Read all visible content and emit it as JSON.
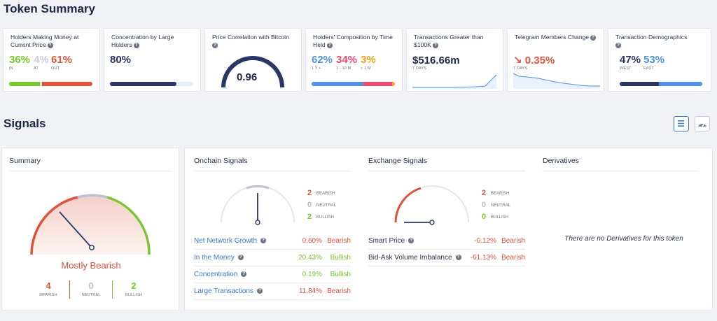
{
  "token_summary": {
    "title": "Token Summary",
    "cards": {
      "holders_money": {
        "title": "Holders Making Money at Current Price",
        "in_pct": "36%",
        "at_pct": "4%",
        "out_pct": "61%",
        "in_label": "IN",
        "at_label": "AT",
        "out_label": "OUT"
      },
      "concentration": {
        "title": "Concentration by Large Holders",
        "value": "80%",
        "fill": 0.8
      },
      "price_correlation": {
        "title": "Price Correlation with Bitcoin",
        "value": "0.96"
      },
      "composition": {
        "title": "Holders' Composition by Time Held",
        "v1": "62%",
        "v2": "34%",
        "v3": "3%",
        "l1": "1 Y +",
        "l2": "1 - 12 M",
        "l3": "< 1 M"
      },
      "transactions": {
        "title": "Transactions Greater than $100K",
        "value": "$516.66m",
        "period": "7 DAYS"
      },
      "telegram": {
        "title": "Telegram Members Change",
        "value": "0.35%",
        "period": "7 DAYS"
      },
      "demographics": {
        "title": "Transaction Demographics",
        "west": "47%",
        "east": "53%",
        "west_label": "WEST",
        "east_label": "EAST"
      }
    }
  },
  "signals": {
    "title": "Signals",
    "summary": {
      "title": "Summary",
      "verdict": "Mostly Bearish",
      "bearish_count": "4",
      "neutral_count": "0",
      "bullish_count": "2",
      "bearish_label": "BEARISH",
      "neutral_label": "NEUTRAL",
      "bullish_label": "BULLISH"
    },
    "onchain": {
      "title": "Onchain Signals",
      "bearish": "2",
      "neutral": "0",
      "bullish": "2",
      "bearish_label": "BEARISH",
      "neutral_label": "NEUTRAL",
      "bullish_label": "BULLISH",
      "rows": [
        {
          "name": "Net Network Growth",
          "pct": "0.60%",
          "result": "Bearish"
        },
        {
          "name": "In the Money",
          "pct": "20.43%",
          "result": "Bullish"
        },
        {
          "name": "Concentration",
          "pct": "0.19%",
          "result": "Bullish"
        },
        {
          "name": "Large Transactions",
          "pct": "11.84%",
          "result": "Bearish"
        }
      ]
    },
    "exchange": {
      "title": "Exchange Signals",
      "bearish": "2",
      "neutral": "0",
      "bullish": "0",
      "bearish_label": "BEARISH",
      "neutral_label": "NEUTRAL",
      "bullish_label": "BULLISH",
      "rows": [
        {
          "name": "Smart Price",
          "pct": "-0.12%",
          "result": "Bearish"
        },
        {
          "name": "Bid-Ask Volume Imbalance",
          "pct": "-61.13%",
          "result": "Bearish"
        }
      ]
    },
    "derivatives": {
      "title": "Derivatives",
      "empty_text": "There are no Derivatives for this token"
    }
  },
  "colors": {
    "bearish": "#e0533a",
    "bullish": "#78c72c",
    "navy": "#2a3766",
    "blue": "#4f92e3"
  }
}
